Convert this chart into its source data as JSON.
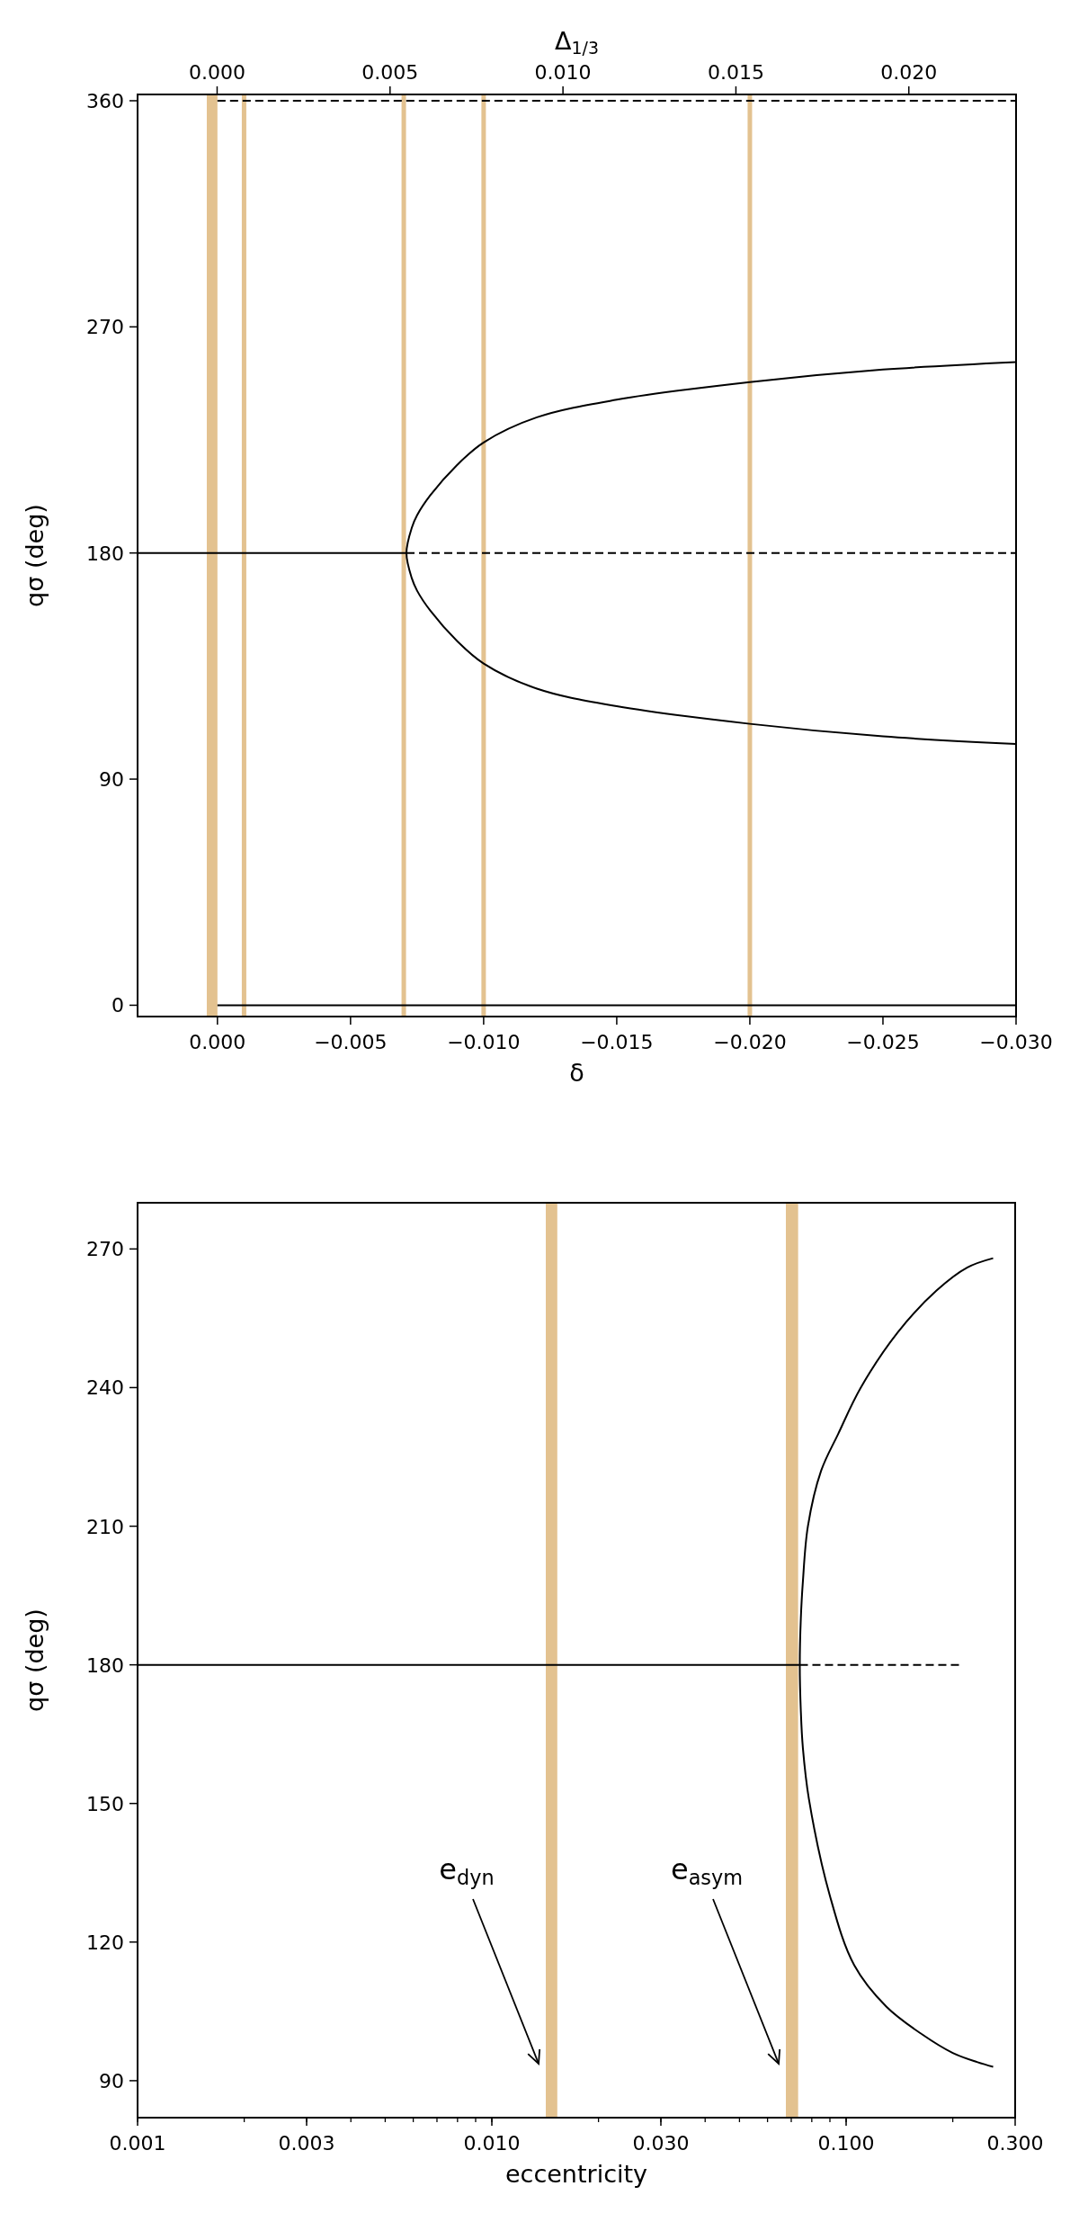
{
  "chart_data": [
    {
      "type": "line",
      "xlabel": "δ",
      "ylabel": "qσ  (deg)",
      "x2label": "Δ$_{1/3}$",
      "xlim": [
        0.003,
        -0.03
      ],
      "xticks": [
        {
          "value": 0,
          "label": "0.000"
        },
        {
          "value": -0.005,
          "label": "−0.005"
        },
        {
          "value": -0.01,
          "label": "−0.010"
        },
        {
          "value": -0.015,
          "label": "−0.015"
        },
        {
          "value": -0.02,
          "label": "−0.020"
        },
        {
          "value": -0.025,
          "label": "−0.025"
        },
        {
          "value": -0.03,
          "label": "−0.030"
        }
      ],
      "x2lim": [
        -0.0023,
        0.0231
      ],
      "x2ticks": [
        {
          "value": 0,
          "label": "0.000"
        },
        {
          "value": 0.005,
          "label": "0.005"
        },
        {
          "value": 0.01,
          "label": "0.010"
        },
        {
          "value": 0.015,
          "label": "0.015"
        },
        {
          "value": 0.02,
          "label": "0.020"
        }
      ],
      "ylim": [
        -4.5,
        362.5
      ],
      "yticks": [
        0,
        90,
        180,
        270,
        360
      ],
      "series": [
        {
          "color": "#000000",
          "line_style": "solid",
          "x": [
            0.003,
            -0.0071
          ],
          "values": [
            180,
            180
          ]
        },
        {
          "color": "#000000",
          "line_style": "dashed",
          "x": [
            -0.0071,
            -0.03
          ],
          "values": [
            180,
            180
          ]
        },
        {
          "color": "#000000",
          "line_style": "solid",
          "x": [
            -0.03,
            -0.025,
            -0.02,
            -0.015,
            -0.012,
            -0.01,
            -0.009,
            -0.008,
            -0.0075,
            -0.0073,
            -0.0071,
            -0.0073,
            -0.0075,
            -0.008,
            -0.009,
            -0.01,
            -0.012,
            -0.015,
            -0.02,
            -0.025,
            -0.03
          ],
          "values": [
            104,
            107,
            112,
            119,
            126,
            136,
            145,
            157,
            165,
            170,
            180,
            190,
            195,
            203,
            215,
            224,
            234,
            241,
            248,
            253,
            256
          ]
        },
        {
          "color": "#000000",
          "line_style": "dashed",
          "x": [
            0,
            -0.03
          ],
          "values": [
            360,
            360
          ]
        },
        {
          "color": "#000000",
          "line_style": "solid",
          "x": [
            0,
            -0.03
          ],
          "values": [
            0,
            0
          ]
        }
      ],
      "ref_lines": [
        {
          "axis": "x",
          "value": -0.001,
          "color": "#e3c290"
        },
        {
          "axis": "x",
          "value": -0.007,
          "color": "#e3c290"
        },
        {
          "axis": "x",
          "value": -0.01,
          "color": "#e3c290"
        },
        {
          "axis": "x",
          "value": -0.02,
          "color": "#e3c290"
        }
      ],
      "bands": [
        {
          "axis": "x",
          "from": 0.0004,
          "to": 0,
          "color": "#e3c290"
        }
      ]
    },
    {
      "type": "line",
      "xlabel": "eccentricity",
      "ylabel": "qσ  (deg)",
      "log": "x",
      "xlim": [
        0.001,
        0.3
      ],
      "xticks": [
        {
          "value": 0.001,
          "label": "0.001"
        },
        {
          "value": 0.003,
          "label": "0.003"
        },
        {
          "value": 0.01,
          "label": "0.010"
        },
        {
          "value": 0.03,
          "label": "0.030"
        },
        {
          "value": 0.1,
          "label": "0.100"
        },
        {
          "value": 0.3,
          "label": "0.300"
        }
      ],
      "ylim": [
        82,
        280
      ],
      "yticks": [
        90,
        120,
        150,
        180,
        210,
        240,
        270
      ],
      "series": [
        {
          "color": "#000000",
          "line_style": "solid",
          "x": [
            0.001,
            0.074
          ],
          "values": [
            180,
            180
          ]
        },
        {
          "color": "#000000",
          "line_style": "dashed",
          "x": [
            0.074,
            0.21
          ],
          "values": [
            180,
            180
          ]
        },
        {
          "color": "#000000",
          "line_style": "solid",
          "x": [
            0.26,
            0.235,
            0.2,
            0.164,
            0.13,
            0.1054,
            0.09,
            0.0785,
            0.0755,
            0.0745,
            0.074,
            0.0745,
            0.0755,
            0.078,
            0.085,
            0.095,
            0.11,
            0.14,
            0.18,
            0.22,
            0.26
          ],
          "values": [
            93,
            94,
            96,
            100,
            106,
            115,
            130,
            151,
            162,
            170,
            180,
            190,
            198,
            210,
            222,
            230,
            240,
            252,
            261,
            266,
            268
          ]
        }
      ],
      "bands": [
        {
          "axis": "x",
          "from": 0.0142,
          "to": 0.0153,
          "color": "#e3c290"
        },
        {
          "axis": "x",
          "from": 0.0676,
          "to": 0.0732,
          "color": "#e3c290"
        }
      ],
      "annotations": [
        "e$_{dyn}$",
        "e$_{asym}$"
      ]
    }
  ]
}
